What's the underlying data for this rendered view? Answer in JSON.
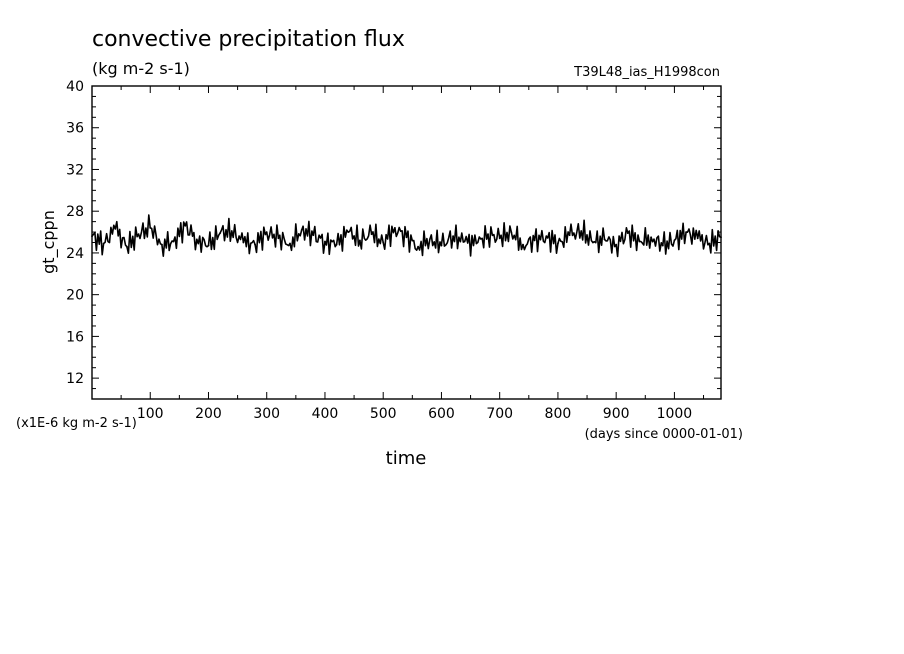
{
  "chart_data": {
    "type": "line",
    "title": "convective precipitation flux",
    "subtitle": "(kg m-2 s-1)",
    "run_label": "T39L48_ias_H1998con",
    "xlabel": "time",
    "x_units": "(days since 0000-01-01)",
    "ylabel": "gt_cppn",
    "y_scale_note": "(x1E-6 kg m-2 s-1)",
    "xlim": [
      0,
      1080
    ],
    "ylim": [
      10,
      40
    ],
    "x_ticks": [
      "100",
      "200",
      "300",
      "400",
      "500",
      "600",
      "700",
      "800",
      "900",
      "1000"
    ],
    "y_ticks": [
      "12",
      "16",
      "20",
      "24",
      "28",
      "32",
      "36",
      "40"
    ],
    "series": [
      {
        "color": "#000000",
        "x": [
          0,
          20,
          40,
          60,
          80,
          100,
          120,
          140,
          160,
          180,
          200,
          220,
          240,
          260,
          280,
          300,
          320,
          340,
          360,
          380,
          400,
          420,
          440,
          460,
          480,
          500,
          520,
          540,
          560,
          580,
          600,
          620,
          640,
          660,
          680,
          700,
          720,
          740,
          760,
          780,
          800,
          820,
          840,
          860,
          880,
          900,
          920,
          940,
          960,
          980,
          1000,
          1020,
          1040,
          1060,
          1080
        ],
        "y": [
          25.6,
          24.9,
          26.3,
          24.6,
          25.8,
          26.4,
          24.8,
          25.1,
          26.6,
          25.3,
          24.7,
          25.9,
          26.1,
          25.0,
          24.8,
          26.0,
          25.4,
          24.9,
          26.2,
          25.7,
          25.1,
          24.8,
          26.0,
          25.2,
          25.8,
          25.0,
          26.4,
          25.5,
          24.6,
          25.3,
          24.7,
          25.6,
          25.1,
          24.9,
          25.8,
          25.4,
          26.0,
          24.8,
          25.2,
          25.6,
          24.9,
          25.7,
          26.1,
          25.0,
          25.3,
          24.8,
          25.9,
          25.1,
          25.5,
          24.7,
          25.2,
          26.0,
          25.4,
          24.9,
          25.5
        ]
      }
    ]
  }
}
